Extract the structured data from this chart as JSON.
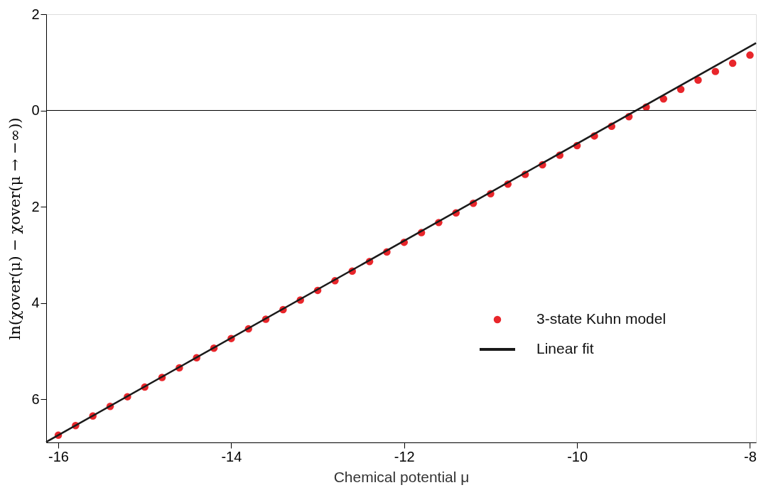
{
  "chart_data": {
    "type": "scatter",
    "xlabel": "Chemical potential μ",
    "ylabel": "ln(χover(μ) − χover(μ → −∞))",
    "xlim": [
      -16.14,
      -7.93
    ],
    "ylim": [
      -6.9,
      2
    ],
    "xticks": [
      -16,
      -14,
      -12,
      -10,
      -8
    ],
    "yticks": [
      2,
      0,
      {
        "value": -2,
        "label": "2"
      },
      {
        "value": -4,
        "label": "4"
      },
      {
        "value": -6,
        "label": "6"
      }
    ],
    "grid": false,
    "legend": "bottom right",
    "ref_lines": [
      {
        "axis": "y",
        "value": 0,
        "color": "#000000"
      }
    ],
    "series": [
      {
        "name": "3-state Kuhn model",
        "marker": "circle",
        "color": "#e8262b",
        "x": [
          -16,
          -15.8,
          -15.6,
          -15.4,
          -15.2,
          -15,
          -14.8,
          -14.6,
          -14.4,
          -14.2,
          -14,
          -13.8,
          -13.6,
          -13.4,
          -13.2,
          -13,
          -12.8,
          -12.6,
          -12.4,
          -12.2,
          -12,
          -11.8,
          -11.6,
          -11.4,
          -11.2,
          -11,
          -10.8,
          -10.6,
          -10.4,
          -10.2,
          -10,
          -9.8,
          -9.6,
          -9.4,
          -9.2,
          -9,
          -8.8,
          -8.6,
          -8.4,
          -8.2,
          -8
        ],
        "values": [
          -6.75,
          -6.55,
          -6.35,
          -6.15,
          -5.95,
          -5.75,
          -5.55,
          -5.35,
          -5.14,
          -4.94,
          -4.74,
          -4.54,
          -4.34,
          -4.14,
          -3.94,
          -3.74,
          -3.54,
          -3.34,
          -3.14,
          -2.94,
          -2.74,
          -2.54,
          -2.33,
          -2.13,
          -1.93,
          -1.73,
          -1.53,
          -1.33,
          -1.13,
          -0.93,
          -0.73,
          -0.53,
          -0.33,
          -0.13,
          0.07,
          0.24,
          0.44,
          0.63,
          0.81,
          0.98,
          1.15
        ]
      },
      {
        "name": "Linear fit",
        "type": "line",
        "marker": "none",
        "color": "#1a1a1a",
        "line_style": "solid",
        "x": [
          -16.14,
          -7.93
        ],
        "values": [
          -6.89,
          1.4
        ]
      }
    ]
  }
}
